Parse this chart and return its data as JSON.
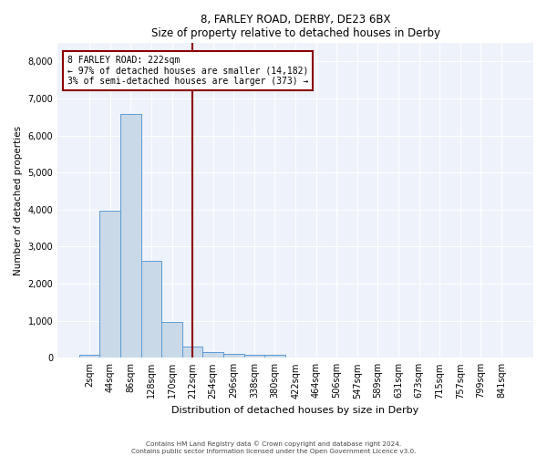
{
  "title_line1": "8, FARLEY ROAD, DERBY, DE23 6BX",
  "title_line2": "Size of property relative to detached houses in Derby",
  "xlabel": "Distribution of detached houses by size in Derby",
  "ylabel": "Number of detached properties",
  "bar_color": "#c9d9e8",
  "bar_edge_color": "#5b9bd5",
  "vline_color": "#8b0000",
  "vline_x": 5.0,
  "annotation_text": "8 FARLEY ROAD: 222sqm\n← 97% of detached houses are smaller (14,182)\n3% of semi-detached houses are larger (373) →",
  "annotation_box_color": "#8b0000",
  "categories": [
    "2sqm",
    "44sqm",
    "86sqm",
    "128sqm",
    "170sqm",
    "212sqm",
    "254sqm",
    "296sqm",
    "338sqm",
    "380sqm",
    "422sqm",
    "464sqm",
    "506sqm",
    "547sqm",
    "589sqm",
    "631sqm",
    "673sqm",
    "715sqm",
    "757sqm",
    "799sqm",
    "841sqm"
  ],
  "values": [
    80,
    3980,
    6580,
    2620,
    960,
    310,
    145,
    115,
    90,
    75,
    0,
    0,
    0,
    0,
    0,
    0,
    0,
    0,
    0,
    0,
    0
  ],
  "ylim": [
    0,
    8500
  ],
  "yticks": [
    0,
    1000,
    2000,
    3000,
    4000,
    5000,
    6000,
    7000,
    8000
  ],
  "footer_line1": "Contains HM Land Registry data © Crown copyright and database right 2024.",
  "footer_line2": "Contains public sector information licensed under the Open Government Licence v3.0.",
  "background_color": "#eef2fa",
  "grid_color": "#ffffff"
}
